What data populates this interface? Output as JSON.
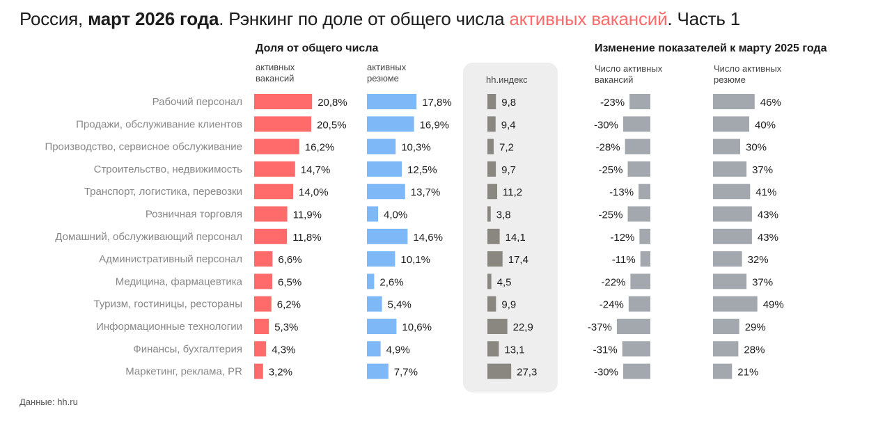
{
  "title": {
    "part1": "Россия, ",
    "part2": "март 2026 года",
    "part3": ". Рэнкинг по доле от общего числа ",
    "part4": "активных вакансий",
    "part5": ". Часть 1"
  },
  "groups": {
    "share_title": "Доля от общего числа",
    "change_title": "Изменение показателей к марту 2025 года"
  },
  "columns": {
    "vacancies": "активных\nвакансий",
    "resumes": "активных\nрезюме",
    "hh_index": "hh.индекс",
    "vac_change": "Число активных\nвакансий",
    "res_change": "Число активных\nрезюме"
  },
  "source": "Данные: hh.ru",
  "colors": {
    "vacancies": "#ff6b6b",
    "resumes": "#7eb8f7",
    "hh_index": "#8a8780",
    "change": "#a3a7ae",
    "panel": "#eeeeee"
  },
  "chart_data": {
    "type": "bar",
    "categories": [
      "Рабочий персонал",
      "Продажи, обслуживание клиентов",
      "Производство, сервисное обслуживание",
      "Строительство, недвижимость",
      "Транспорт, логистика, перевозки",
      "Розничная торговля",
      "Домашний, обслуживающий персонал",
      "Административный персонал",
      "Медицина, фармацевтика",
      "Туризм, гостиницы, рестораны",
      "Информационные технологии",
      "Финансы, бухгалтерия",
      "Маркетинг, реклама, PR"
    ],
    "series": [
      {
        "name": "активных вакансий",
        "unit": "%",
        "values": [
          20.8,
          20.5,
          16.2,
          14.7,
          14.0,
          11.9,
          11.8,
          6.6,
          6.5,
          6.2,
          5.3,
          4.3,
          3.2
        ]
      },
      {
        "name": "активных резюме",
        "unit": "%",
        "values": [
          17.8,
          16.9,
          10.3,
          12.5,
          13.7,
          4.0,
          14.6,
          10.1,
          2.6,
          5.4,
          10.6,
          4.9,
          7.7
        ]
      },
      {
        "name": "hh.индекс",
        "unit": "",
        "values": [
          9.8,
          9.4,
          7.2,
          9.7,
          11.2,
          3.8,
          14.1,
          17.4,
          4.5,
          9.9,
          22.9,
          13.1,
          27.3
        ]
      },
      {
        "name": "Число активных вакансий",
        "unit": "%",
        "values": [
          -23,
          -30,
          -28,
          -25,
          -13,
          -25,
          -12,
          -11,
          -22,
          -24,
          -37,
          -31,
          -30
        ]
      },
      {
        "name": "Число активных резюме",
        "unit": "%",
        "values": [
          46,
          40,
          30,
          37,
          41,
          43,
          43,
          32,
          37,
          49,
          29,
          28,
          21
        ]
      }
    ]
  }
}
